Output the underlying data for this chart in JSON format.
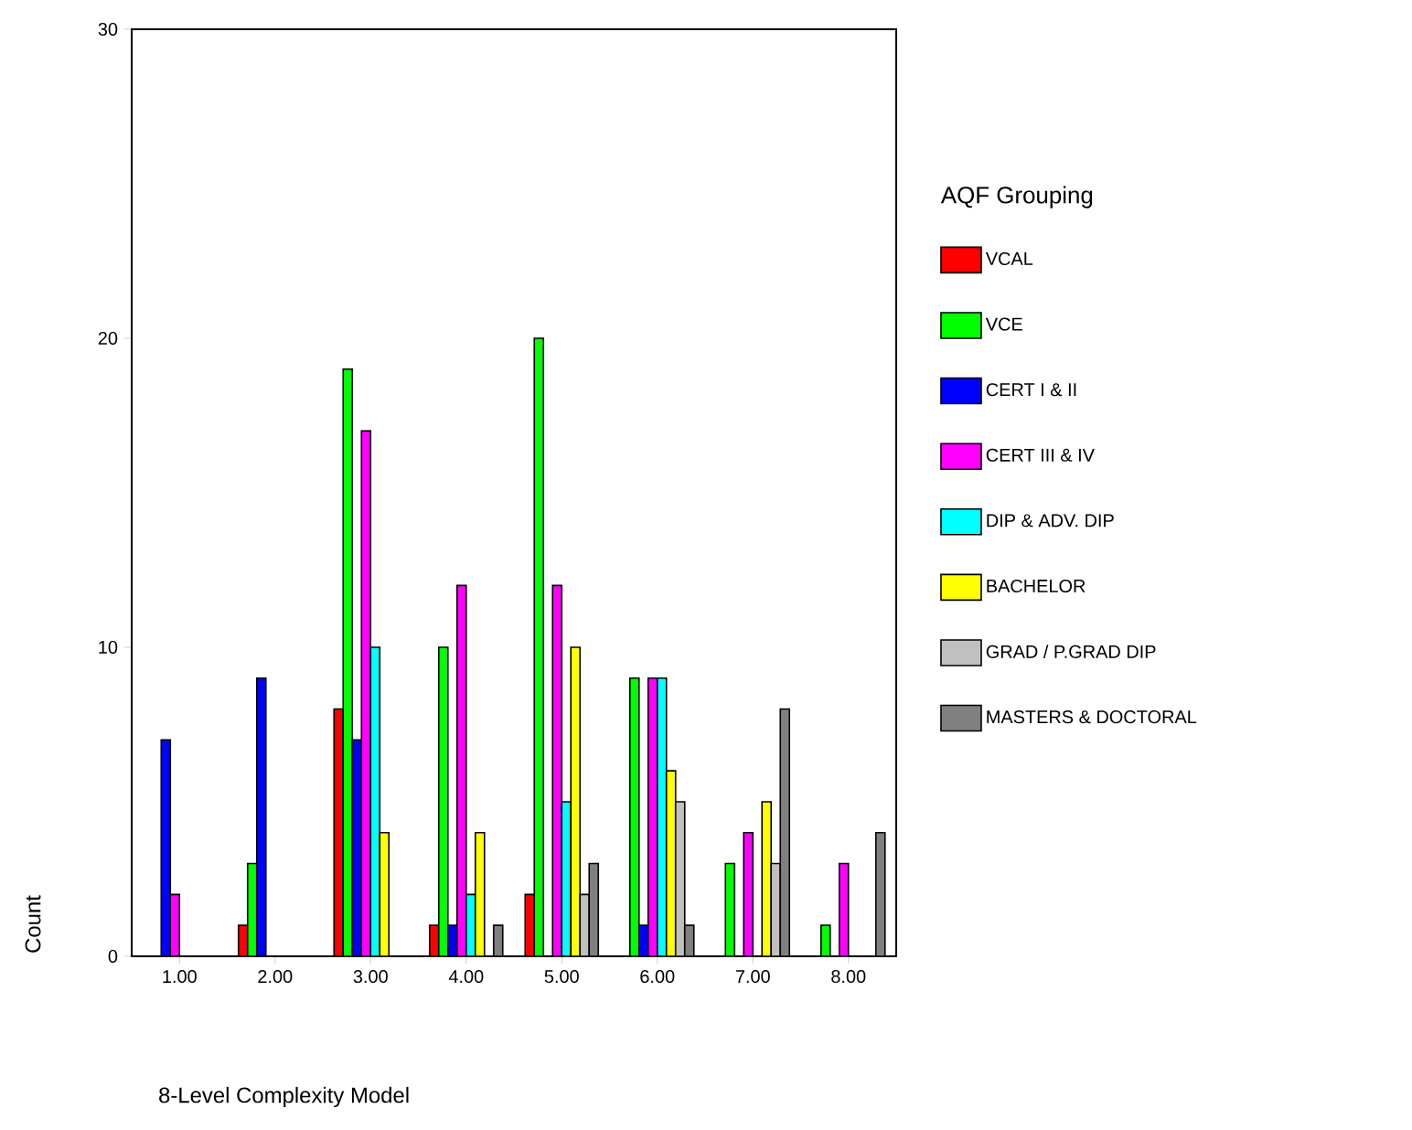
{
  "chart_data": {
    "type": "bar",
    "xlabel": "8-Level Complexity Model",
    "ylabel": "Count",
    "legend_title": "AQF Grouping",
    "categories": [
      "1.00",
      "2.00",
      "3.00",
      "4.00",
      "5.00",
      "6.00",
      "7.00",
      "8.00"
    ],
    "series": [
      {
        "name": "VCAL",
        "color": "#ff0000",
        "values": [
          0,
          1,
          8,
          1,
          2,
          0,
          0,
          0
        ]
      },
      {
        "name": "VCE",
        "color": "#00ff00",
        "values": [
          0,
          3,
          19,
          10,
          20,
          9,
          3,
          1
        ]
      },
      {
        "name": "CERT I & II",
        "color": "#0000ff",
        "values": [
          7,
          9,
          7,
          1,
          0,
          1,
          0,
          0
        ]
      },
      {
        "name": "CERT III & IV",
        "color": "#ff00ff",
        "values": [
          2,
          0,
          17,
          12,
          12,
          9,
          4,
          3
        ]
      },
      {
        "name": "DIP & ADV. DIP",
        "color": "#00ffff",
        "values": [
          0,
          0,
          10,
          2,
          5,
          9,
          0,
          0
        ]
      },
      {
        "name": "BACHELOR",
        "color": "#ffff00",
        "values": [
          0,
          0,
          4,
          4,
          10,
          6,
          5,
          0
        ]
      },
      {
        "name": "GRAD / P.GRAD DIP",
        "color": "#c0c0c0",
        "values": [
          0,
          0,
          0,
          0,
          2,
          5,
          3,
          0
        ]
      },
      {
        "name": "MASTERS & DOCTORAL",
        "color": "#808080",
        "values": [
          0,
          0,
          0,
          1,
          3,
          1,
          8,
          4
        ]
      }
    ],
    "ylim": [
      0,
      30
    ],
    "yticks": [
      0,
      10,
      20,
      30
    ],
    "legend": "right",
    "grid": false
  }
}
